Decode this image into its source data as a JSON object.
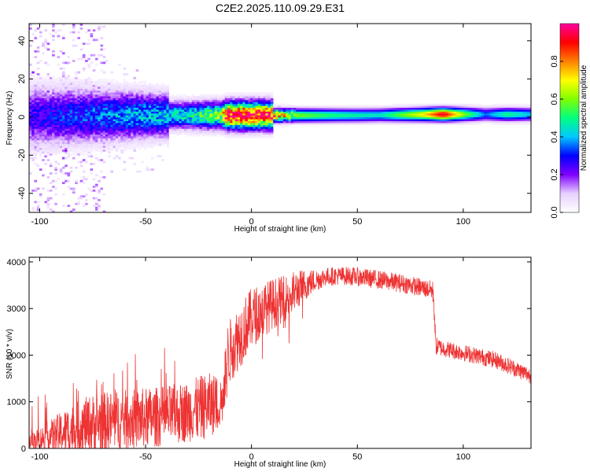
{
  "title": "C2E2.2025.110.09.29.E31",
  "chart_data": [
    {
      "type": "heatmap",
      "name": "spectrogram",
      "xlabel": "Height of straight line (km)",
      "ylabel": "Frequency (Hz)",
      "xlim": [
        -105,
        132
      ],
      "ylim": [
        -50,
        49
      ],
      "xticks": [
        -100,
        -50,
        0,
        50,
        100
      ],
      "yticks": [
        -40,
        -20,
        0,
        20,
        40
      ],
      "colorbar": {
        "label": "Normalized spectral amplitude",
        "range": [
          0.0,
          1.0
        ],
        "ticks": [
          "0.0",
          "0.2",
          "0.4",
          "0.6",
          "0.8"
        ],
        "tick_values": [
          0.0,
          0.2,
          0.4,
          0.6,
          0.8
        ],
        "colormap": [
          "#ffffff",
          "#e8d0ff",
          "#8000ff",
          "#0000ff",
          "#00c8ff",
          "#00ff80",
          "#80ff00",
          "#ffff00",
          "#ff8000",
          "#ff0000",
          "#ff00a0"
        ]
      },
      "band": {
        "center_hz": [
          [
            -100,
            0
          ],
          [
            -50,
            0.5
          ],
          [
            0,
            0.5
          ],
          [
            50,
            0.5
          ],
          [
            85,
            1.0
          ],
          [
            100,
            1.0
          ],
          [
            132,
            1.0
          ]
        ],
        "peak_amplitude": [
          [
            -105,
            0.25
          ],
          [
            -90,
            0.3
          ],
          [
            -70,
            0.35
          ],
          [
            -50,
            0.4
          ],
          [
            -30,
            0.45
          ],
          [
            -15,
            0.6
          ],
          [
            -12,
            0.95
          ],
          [
            0,
            0.95
          ],
          [
            8,
            0.9
          ],
          [
            20,
            0.6
          ],
          [
            40,
            0.5
          ],
          [
            60,
            0.45
          ],
          [
            80,
            0.7
          ],
          [
            90,
            0.95
          ],
          [
            100,
            0.6
          ],
          [
            110,
            0.35
          ],
          [
            120,
            0.5
          ],
          [
            132,
            0.4
          ]
        ]
      }
    },
    {
      "type": "line",
      "name": "snr",
      "xlabel": "Height of straight line (km)",
      "ylabel": "SNR (10 * v/v)",
      "xlim": [
        -105,
        132
      ],
      "ylim": [
        0,
        4100
      ],
      "xticks": [
        -100,
        -50,
        0,
        50,
        100
      ],
      "yticks": [
        0,
        1000,
        2000,
        3000,
        4000
      ],
      "color": "#ee3333",
      "series": [
        {
          "x": [
            -105,
            -100,
            -95,
            -90,
            -85,
            -80,
            -75,
            -70,
            -65,
            -60,
            -55,
            -50,
            -45,
            -40,
            -35,
            -30,
            -25,
            -20,
            -15,
            -13,
            -12,
            -10,
            -5,
            0,
            5,
            10,
            15,
            20,
            25,
            30,
            35,
            40,
            45,
            50,
            55,
            60,
            65,
            70,
            75,
            80,
            85,
            86,
            87,
            90,
            95,
            100,
            105,
            110,
            115,
            120,
            125,
            130,
            132
          ],
          "y": [
            150,
            200,
            260,
            330,
            400,
            460,
            520,
            560,
            590,
            610,
            630,
            650,
            670,
            700,
            740,
            790,
            850,
            920,
            1000,
            1050,
            1900,
            2100,
            2450,
            2800,
            2950,
            3100,
            3200,
            3350,
            3500,
            3600,
            3680,
            3700,
            3700,
            3680,
            3650,
            3620,
            3580,
            3550,
            3500,
            3450,
            3400,
            3300,
            2200,
            2150,
            2100,
            2050,
            2000,
            1950,
            1900,
            1800,
            1700,
            1600,
            1550
          ],
          "noise": [
            150,
            250,
            350,
            450,
            550,
            600,
            650,
            650,
            650,
            650,
            650,
            650,
            650,
            650,
            650,
            650,
            700,
            700,
            600,
            500,
            700,
            700,
            700,
            650,
            600,
            550,
            500,
            450,
            350,
            250,
            200,
            200,
            200,
            200,
            200,
            200,
            200,
            200,
            200,
            200,
            200,
            300,
            200,
            180,
            180,
            180,
            180,
            180,
            180,
            180,
            180,
            180,
            180
          ]
        }
      ]
    }
  ]
}
